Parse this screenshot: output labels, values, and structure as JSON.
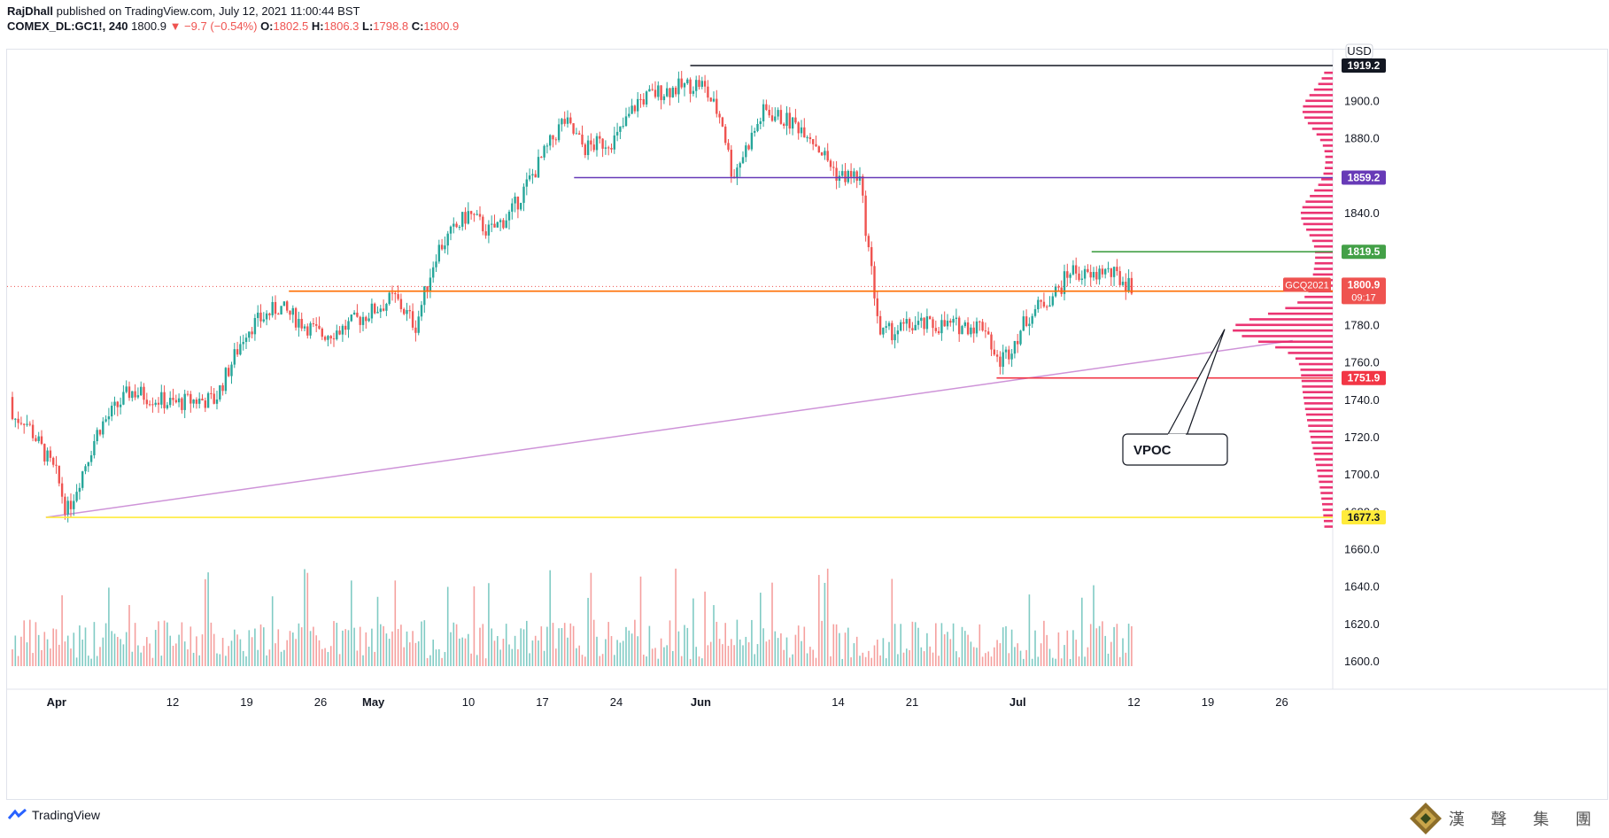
{
  "header": {
    "author": "RajDhall",
    "published": " published on TradingView.com, July 12, 2021 11:00:44 BST",
    "symbol": "COMEX_DL:GC1!, 240",
    "last": "1800.9",
    "change": "−9.7 (−0.54%)",
    "o_label": "O:",
    "o_value": "1802.5",
    "h_label": "H:",
    "h_value": "1806.3",
    "l_label": "L:",
    "l_value": "1798.8",
    "c_label": "C:",
    "c_value": "1800.9"
  },
  "footer": {
    "brand": "TradingView",
    "right_text": "漢 聲 集 團"
  },
  "colors": {
    "up": "#26a69a",
    "down": "#ef5350",
    "volume_up": "#80cbc4",
    "volume_down": "#f5a09e",
    "vpoc": "#e91e63"
  },
  "chart_data": {
    "type": "candlestick",
    "currency": "USD",
    "ylim": [
      1590,
      1925
    ],
    "y_ticks": [
      "1900.0",
      "1880.0",
      "1860.0",
      "1840.0",
      "1820.0",
      "1800.0",
      "1780.0",
      "1760.0",
      "1740.0",
      "1720.0",
      "1700.0",
      "1680.0",
      "1660.0",
      "1640.0",
      "1620.0",
      "1600.0"
    ],
    "x_ticks": [
      "Apr",
      "12",
      "19",
      "26",
      "May",
      "10",
      "17",
      "24",
      "Jun",
      "14",
      "21",
      "Jul",
      "12",
      "19",
      "26"
    ],
    "close_path": [
      [
        "Mar 29",
        1730
      ],
      [
        "Apr 1",
        1700
      ],
      [
        "Apr 2",
        1680
      ],
      [
        "Apr 5",
        1725
      ],
      [
        "Apr 8",
        1745
      ],
      [
        "Apr 12",
        1738
      ],
      [
        "Apr 14",
        1740
      ],
      [
        "Apr 16",
        1740
      ],
      [
        "Apr 19",
        1778
      ],
      [
        "Apr 22",
        1790
      ],
      [
        "Apr 26",
        1775
      ],
      [
        "Apr 28",
        1778
      ],
      [
        "May 3",
        1795
      ],
      [
        "May 5",
        1780
      ],
      [
        "May 7",
        1820
      ],
      [
        "May 10",
        1840
      ],
      [
        "May 12",
        1830
      ],
      [
        "May 14",
        1840
      ],
      [
        "May 17",
        1870
      ],
      [
        "May 19",
        1890
      ],
      [
        "May 21",
        1875
      ],
      [
        "May 24",
        1880
      ],
      [
        "May 26",
        1900
      ],
      [
        "May 28",
        1905
      ],
      [
        "Jun 1",
        1910
      ],
      [
        "Jun 3",
        1890
      ],
      [
        "Jun 4",
        1860
      ],
      [
        "Jun 7",
        1895
      ],
      [
        "Jun 9",
        1890
      ],
      [
        "Jun 11",
        1885
      ],
      [
        "Jun 14",
        1860
      ],
      [
        "Jun 16",
        1860
      ],
      [
        "Jun 17",
        1815
      ],
      [
        "Jun 18",
        1775
      ],
      [
        "Jun 21",
        1780
      ],
      [
        "Jun 24",
        1780
      ],
      [
        "Jun 28",
        1780
      ],
      [
        "Jun 29",
        1760
      ],
      [
        "Jun 30",
        1765
      ],
      [
        "Jul 2",
        1785
      ],
      [
        "Jul 5",
        1800
      ],
      [
        "Jul 6",
        1810
      ],
      [
        "Jul 8",
        1805
      ],
      [
        "Jul 9",
        1810
      ],
      [
        "Jul 12",
        1800.9
      ]
    ],
    "levels": [
      {
        "label": "1919.2",
        "value": 1919.2,
        "color": "#131722",
        "from": "May 31"
      },
      {
        "label": "1859.2",
        "value": 1859.2,
        "color": "#673ab7",
        "from": "May 20"
      },
      {
        "label": "1819.5",
        "value": 1819.5,
        "color": "#43a047",
        "from": "Jul 8"
      },
      {
        "label": "1798.4",
        "value": 1798.4,
        "color": "#ff6d00",
        "from": "Apr 23"
      },
      {
        "label": "1751.9",
        "value": 1751.9,
        "color": "#f23645",
        "from": "Jun 29"
      },
      {
        "label": "1677.3",
        "value": 1677.3,
        "color": "#ffeb3b",
        "from": "Mar 31"
      }
    ],
    "price_tag": {
      "symbol": "GCQ2021",
      "value": "1800.9",
      "countdown": "09:17"
    },
    "trendline": {
      "from": [
        "Mar 31",
        1677.3
      ],
      "to": [
        "Jul 22",
        1771
      ]
    },
    "annotation": {
      "text": "VPOC",
      "points_to": [
        "Jul 22",
        1778
      ]
    },
    "volume_profile_peak": 1778
  }
}
